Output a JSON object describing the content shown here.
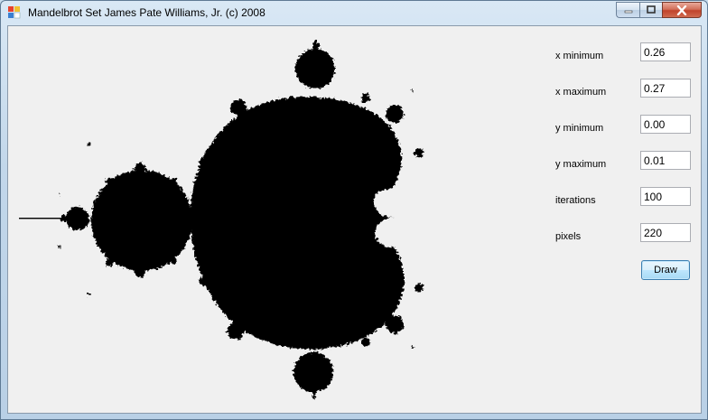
{
  "window": {
    "title": "Mandelbrot Set James Pate Williams, Jr. (c) 2008",
    "controls": [
      "minimize-icon",
      "maximize-icon",
      "close-icon"
    ]
  },
  "fractal": {
    "fill_color": "#000000",
    "background_color": "#f0f0f0",
    "icon": "mandelbrot-set-image"
  },
  "form": {
    "x_min": {
      "label": "x minimum",
      "value": "0.26"
    },
    "x_max": {
      "label": "x maximum",
      "value": "0.27"
    },
    "y_min": {
      "label": "y minimum",
      "value": "0.00"
    },
    "y_max": {
      "label": "y maximum",
      "value": "0.01"
    },
    "iterations": {
      "label": "iterations",
      "value": "100"
    },
    "pixels": {
      "label": "pixels",
      "value": "220"
    },
    "draw_label": "Draw"
  }
}
